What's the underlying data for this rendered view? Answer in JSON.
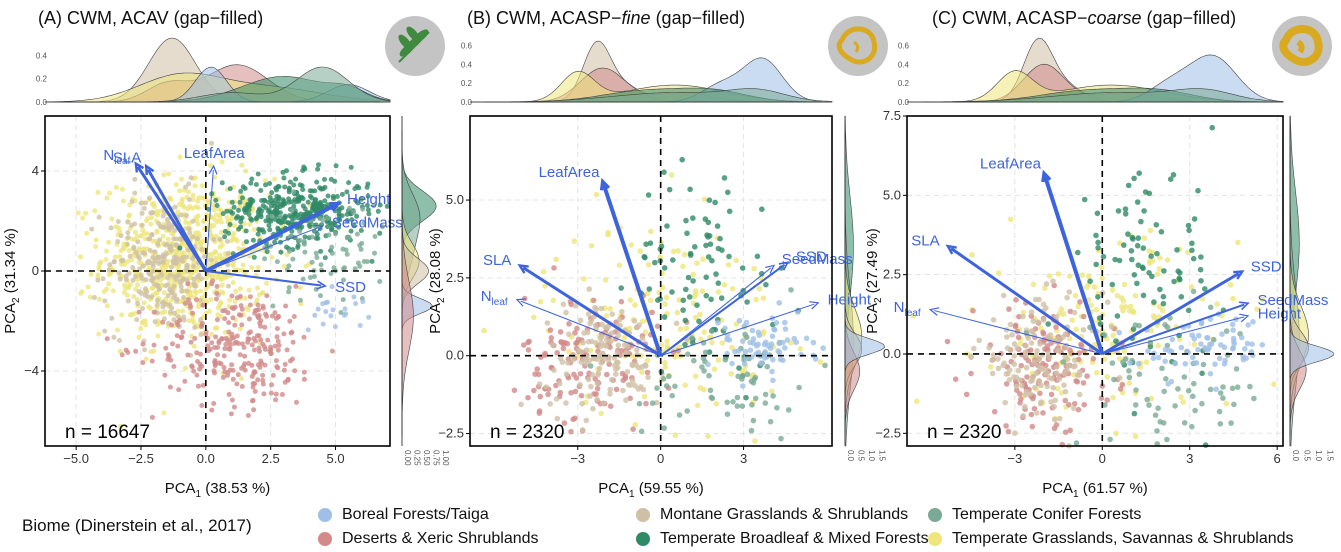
{
  "chart_data": [
    {
      "type": "scatter",
      "panel": "A",
      "title": "(A) CWM, ACAV (gap−filled)",
      "xlabel": "PCA",
      "xlabel_sub": "1",
      "xlabel_rest": " (38.53 %)",
      "ylabel": "PCA",
      "ylabel_sub": "2",
      "ylabel_rest": " (31.34 %)",
      "n_label": "n = 16647",
      "xlim": [
        -6.2,
        7.1
      ],
      "ylim": [
        -7.0,
        6.2
      ],
      "xticks": [
        -5.0,
        -2.5,
        0.0,
        2.5,
        5.0
      ],
      "xtick_labels": [
        "−5.0",
        "−2.5",
        "0.0",
        "2.5",
        "5.0"
      ],
      "yticks": [
        -4,
        0,
        4
      ],
      "ytick_labels": [
        "−4",
        "0",
        "4"
      ],
      "top_density_ticks": [
        "0.0",
        "0.2",
        "0.4"
      ],
      "right_density_ticks": [
        "0.00",
        "0.25",
        "0.50",
        "0.75",
        "1.00"
      ],
      "icon": "leaf-icon",
      "loadings": [
        {
          "name": "N",
          "sub": "leaf",
          "x": -2.7,
          "y": 4.3,
          "thick": 3
        },
        {
          "name": "SLA",
          "sub": "",
          "x": -2.3,
          "y": 4.2,
          "thick": 3
        },
        {
          "name": "LeafArea",
          "sub": "",
          "x": 0.3,
          "y": 4.2,
          "thick": 1
        },
        {
          "name": "Height",
          "sub": "",
          "x": 5.1,
          "y": 2.7,
          "thick": 4
        },
        {
          "name": "SeedMass",
          "sub": "",
          "x": 4.5,
          "y": 1.8,
          "thick": 1
        },
        {
          "name": "SSD",
          "sub": "",
          "x": 4.6,
          "y": -0.6,
          "thick": 2
        }
      ]
    },
    {
      "type": "scatter",
      "panel": "B",
      "title": "(B) CWM, ACASP−",
      "title_italic": "fine",
      "title_rest": "  (gap−filled)",
      "xlabel": "PCA",
      "xlabel_sub": "1",
      "xlabel_rest": " (59.55 %)",
      "ylabel": "PCA",
      "ylabel_sub": "2",
      "ylabel_rest": " (28.08 %)",
      "n_label": "n = 2320",
      "xlim": [
        -6.9,
        6.2
      ],
      "ylim": [
        -2.9,
        7.7
      ],
      "xticks": [
        -3,
        0,
        3
      ],
      "xtick_labels": [
        "−3",
        "0",
        "3"
      ],
      "yticks": [
        -2.5,
        0.0,
        2.5,
        5.0
      ],
      "ytick_labels": [
        "−2.5",
        "0.0",
        "2.5",
        "5.0"
      ],
      "top_density_ticks": [
        "0.0",
        "0.2",
        "0.4",
        "0.6"
      ],
      "right_density_ticks": [
        "0.0",
        "0.5",
        "1.0",
        "1.5"
      ],
      "icon": "fine-root-icon",
      "loadings": [
        {
          "name": "LeafArea",
          "sub": "",
          "x": -2.1,
          "y": 5.6,
          "thick": 4
        },
        {
          "name": "SLA",
          "sub": "",
          "x": -5.1,
          "y": 2.9,
          "thick": 3
        },
        {
          "name": "N",
          "sub": "leaf",
          "x": -5.2,
          "y": 1.8,
          "thick": 1
        },
        {
          "name": "SeedMass",
          "sub": "",
          "x": 4.1,
          "y": 2.9,
          "thick": 1
        },
        {
          "name": "SSD",
          "sub": "",
          "x": 4.6,
          "y": 3.0,
          "thick": 2
        },
        {
          "name": "Height",
          "sub": "",
          "x": 5.7,
          "y": 1.7,
          "thick": 1
        }
      ]
    },
    {
      "type": "scatter",
      "panel": "C",
      "title": "(C) CWM, ACASP−",
      "title_italic": "coarse",
      "title_rest": " (gap−filled)",
      "xlabel": "PCA",
      "xlabel_sub": "1",
      "xlabel_rest": " (61.57 %)",
      "ylabel": "PCA",
      "ylabel_sub": "2",
      "ylabel_rest": " (27.49 %)",
      "n_label": "n = 2320",
      "xlim": [
        -6.7,
        6.2
      ],
      "ylim": [
        -2.9,
        7.5
      ],
      "xticks": [
        -3,
        0,
        3,
        6
      ],
      "xtick_labels": [
        "−3",
        "0",
        "3",
        "6"
      ],
      "yticks": [
        -2.5,
        0.0,
        2.5,
        5.0,
        7.5
      ],
      "ytick_labels": [
        "−2.5",
        "0.0",
        "2.5",
        "5.0",
        "7.5"
      ],
      "top_density_ticks": [
        "0.0",
        "0.2",
        "0.4",
        "0.6"
      ],
      "right_density_ticks": [
        "0.0",
        "0.5",
        "1.0",
        "1.5"
      ],
      "icon": "coarse-root-icon",
      "loadings": [
        {
          "name": "LeafArea",
          "sub": "",
          "x": -2.0,
          "y": 5.7,
          "thick": 4
        },
        {
          "name": "SLA",
          "sub": "",
          "x": -5.3,
          "y": 3.4,
          "thick": 3
        },
        {
          "name": "N",
          "sub": "leaf",
          "x": -5.9,
          "y": 1.4,
          "thick": 1
        },
        {
          "name": "SSD",
          "sub": "",
          "x": 4.8,
          "y": 2.6,
          "thick": 3
        },
        {
          "name": "SeedMass",
          "sub": "",
          "x": 5.0,
          "y": 1.6,
          "thick": 2
        },
        {
          "name": "Height",
          "sub": "",
          "x": 5.0,
          "y": 1.2,
          "thick": 1
        }
      ]
    }
  ],
  "legend": {
    "title": "Biome (Dinerstein et al., 2017)",
    "items": [
      {
        "label": "Boreal Forests/Taiga",
        "color": "#9fbfe6"
      },
      {
        "label": "Deserts & Xeric Shrublands",
        "color": "#d28a8a"
      },
      {
        "label": "Montane Grasslands & Shrublands",
        "color": "#cfc0a5"
      },
      {
        "label": "Temperate Broadleaf & Mixed Forests",
        "color": "#2f8a66"
      },
      {
        "label": "Temperate Conifer Forests",
        "color": "#7aaa96"
      },
      {
        "label": "Temperate Grasslands, Savannas & Shrublands",
        "color": "#eee67c"
      }
    ]
  },
  "colors": {
    "arrow": "#3d63dd",
    "zero_line": "#000000",
    "grid": "#e3e3e3",
    "icon_bg": "#c4c4c4",
    "leaf": "#3f8a3f",
    "root": "#d9aa1f"
  }
}
